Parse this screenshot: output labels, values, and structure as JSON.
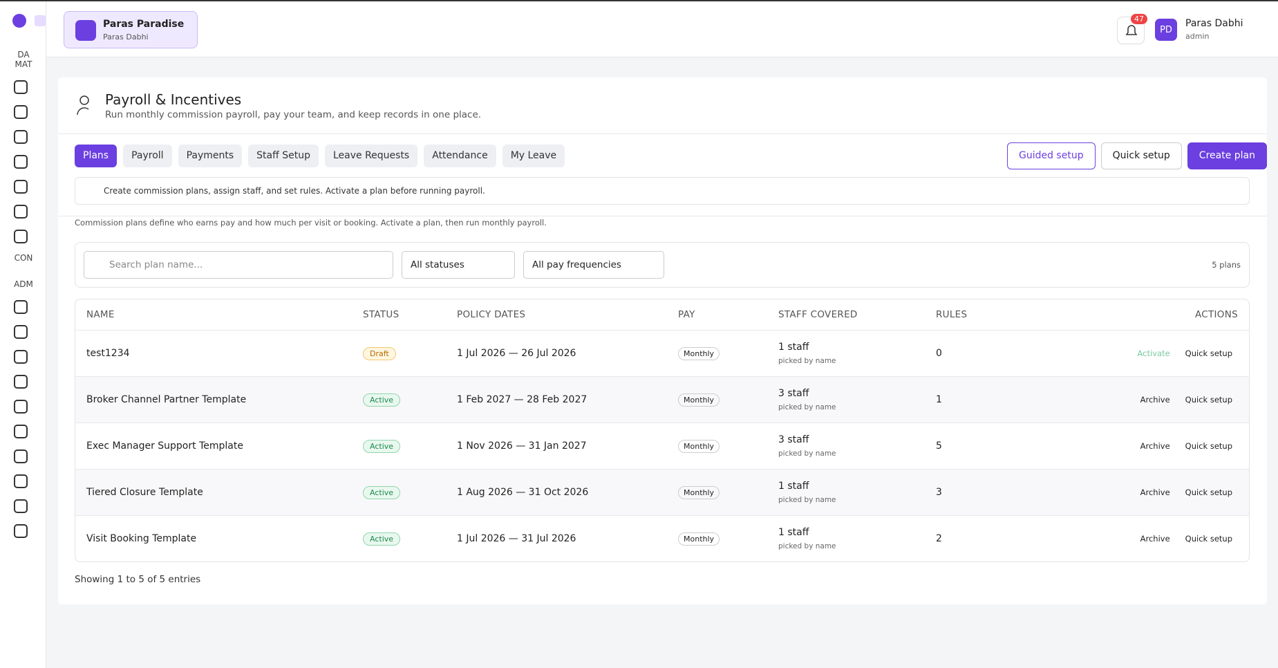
{
  "sidebar": {
    "labels": [
      "DA",
      "MAT",
      "CON",
      "ADM"
    ]
  },
  "org": {
    "name": "Paras Paradise",
    "owner": "Paras Dabhi"
  },
  "notifications": 47,
  "user": {
    "initials": "PD",
    "name": "Paras Dabhi",
    "role": "admin"
  },
  "header": {
    "title": "Payroll & Incentives",
    "subtitle": "Run monthly commission payroll, pay your team, and keep records in one place."
  },
  "tabs": [
    "Plans",
    "Payroll",
    "Payments",
    "Staff Setup",
    "Leave Requests",
    "Attendance",
    "My Leave"
  ],
  "buttons": [
    "Guided setup",
    "Quick setup",
    "Create plan"
  ],
  "tip": "Create commission plans, assign staff, and set rules. Activate a plan before running payroll.",
  "note": "Commission plans define who earns pay and how much per visit or booking. Activate a plan, then run monthly payroll.",
  "filters": {
    "search_placeholder": "Search plan name...",
    "status": "All statuses",
    "frequency": "All pay frequencies",
    "count": "5 plans"
  },
  "table": {
    "columns": [
      "NAME",
      "STATUS",
      "POLICY DATES",
      "PAY",
      "STAFF COVERED",
      "RULES",
      "ACTIONS"
    ],
    "rows": [
      {
        "name": "test1234",
        "status": "Draft",
        "dates": "1 Jul 2026 — 26 Jul 2026",
        "pay": "Monthly",
        "staff": "1 staff",
        "staff_note": "picked by name",
        "rules": 0,
        "actions": [
          "Activate",
          "Quick setup"
        ]
      },
      {
        "name": "Broker Channel Partner Template",
        "status": "Active",
        "dates": "1 Feb 2027 — 28 Feb 2027",
        "pay": "Monthly",
        "staff": "3 staff",
        "staff_note": "picked by name",
        "rules": 1,
        "actions": [
          "Archive",
          "Quick setup"
        ]
      },
      {
        "name": "Exec Manager Support Template",
        "status": "Active",
        "dates": "1 Nov 2026 — 31 Jan 2027",
        "pay": "Monthly",
        "staff": "3 staff",
        "staff_note": "picked by name",
        "rules": 5,
        "actions": [
          "Archive",
          "Quick setup"
        ]
      },
      {
        "name": "Tiered Closure Template",
        "status": "Active",
        "dates": "1 Aug 2026 — 31 Oct 2026",
        "pay": "Monthly",
        "staff": "1 staff",
        "staff_note": "picked by name",
        "rules": 3,
        "actions": [
          "Archive",
          "Quick setup"
        ]
      },
      {
        "name": "Visit Booking Template",
        "status": "Active",
        "dates": "1 Jul 2026 — 31 Jul 2026",
        "pay": "Monthly",
        "staff": "1 staff",
        "staff_note": "picked by name",
        "rules": 2,
        "actions": [
          "Archive",
          "Quick setup"
        ]
      }
    ]
  },
  "footer": "Showing 1 to 5 of 5 entries"
}
